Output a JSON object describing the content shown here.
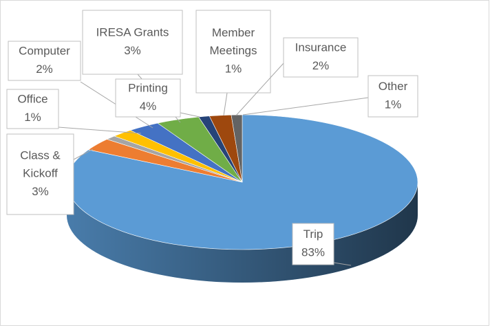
{
  "chart_data": {
    "type": "pie",
    "categories": [
      "Trip",
      "Class & Kickoff",
      "Office",
      "Computer",
      "IRESA Grants",
      "Printing",
      "Member Meetings",
      "Insurance",
      "Other"
    ],
    "values": [
      83,
      3,
      1,
      2,
      3,
      4,
      1,
      2,
      1
    ],
    "value_labels": [
      "83%",
      "3%",
      "1%",
      "2%",
      "3%",
      "4%",
      "1%",
      "2%",
      "1%"
    ],
    "colors": [
      "#5b9bd5",
      "#ed7d31",
      "#a5a5a5",
      "#ffc000",
      "#4472c4",
      "#70ad47",
      "#264478",
      "#9e480e",
      "#636363"
    ]
  }
}
